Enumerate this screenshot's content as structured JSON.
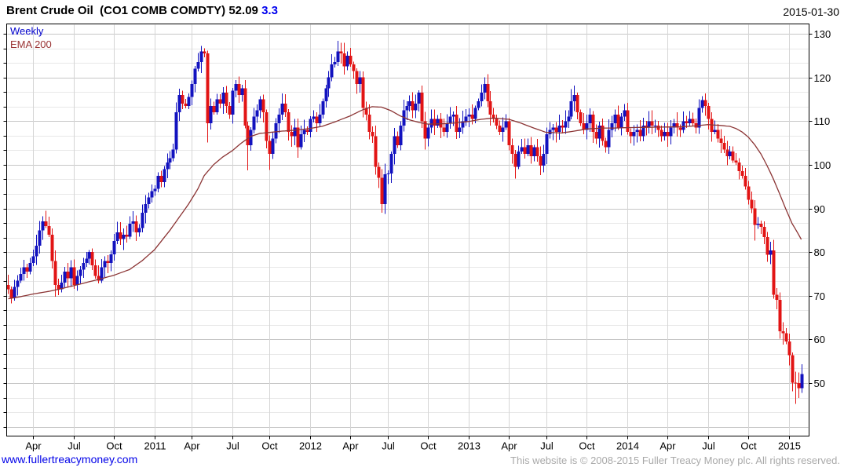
{
  "header": {
    "title": "Brent Crude Oil  (CO1 COMB COMDTY)",
    "price": "52.09",
    "change": "3.3",
    "date": "2015-01-30"
  },
  "legend": {
    "frequency": "Weekly",
    "overlay": "EMA 200"
  },
  "footer": {
    "website": "www.fullertreacymoney.com",
    "copyright": "This website is © 2008-2015 Fuller Treacy Money plc. All rights reserved."
  },
  "colors": {
    "up": "#1212bf",
    "down": "#e21414",
    "ema": "#8b3434",
    "grid_major": "#c6c6c6",
    "grid_minor": "#e8e8e8",
    "grid_vertical": "#d5d5d5",
    "axis": "#000000",
    "link": "#0000e8",
    "change": "#0000ee",
    "frequency_label": "#0000cc",
    "overlay_label": "#993333",
    "copyright": "#a9a9a9"
  },
  "chart_data": {
    "type": "candlestick",
    "instrument": "Brent Crude Oil",
    "ticker": "CO1 COMB COMDTY",
    "frequency": "Weekly",
    "overlay": "EMA 200",
    "last_price": 52.09,
    "change": 3.3,
    "as_of": "2015-01-30",
    "y_axis": {
      "ticks": [
        130,
        120,
        110,
        100,
        90,
        80,
        70,
        60,
        50
      ],
      "top_price": 132.3,
      "bottom_price": 38.0,
      "label_side": "right"
    },
    "x_axis": {
      "ticks": [
        {
          "label": "Apr",
          "idx": 8
        },
        {
          "label": "Jul",
          "idx": 21
        },
        {
          "label": "Oct",
          "idx": 34
        },
        {
          "label": "2011",
          "idx": 47
        },
        {
          "label": "Apr",
          "idx": 59
        },
        {
          "label": "Jul",
          "idx": 72
        },
        {
          "label": "Oct",
          "idx": 84
        },
        {
          "label": "2012",
          "idx": 97
        },
        {
          "label": "Apr",
          "idx": 110
        },
        {
          "label": "Jul",
          "idx": 122
        },
        {
          "label": "Oct",
          "idx": 135
        },
        {
          "label": "2013",
          "idx": 148
        },
        {
          "label": "Apr",
          "idx": 161
        },
        {
          "label": "Jul",
          "idx": 173
        },
        {
          "label": "Oct",
          "idx": 186
        },
        {
          "label": "2014",
          "idx": 199
        },
        {
          "label": "Apr",
          "idx": 212
        },
        {
          "label": "Jul",
          "idx": 225
        },
        {
          "label": "Oct",
          "idx": 238
        },
        {
          "label": "2015",
          "idx": 251
        }
      ]
    },
    "start_week": "2010-02-05",
    "first_open": 72.5,
    "weekly_closes": [
      71.5,
      69.5,
      72.0,
      73.5,
      75.0,
      76.5,
      75.5,
      77.5,
      79.0,
      81.5,
      85.0,
      87.0,
      86.0,
      84.0,
      78.0,
      72.5,
      71.5,
      73.0,
      75.5,
      74.0,
      76.5,
      72.5,
      74.5,
      76.0,
      77.5,
      78.5,
      80.0,
      77.0,
      74.5,
      73.5,
      76.5,
      78.0,
      77.5,
      79.5,
      82.5,
      84.5,
      83.0,
      84.0,
      83.5,
      86.5,
      87.0,
      84.5,
      85.5,
      89.0,
      91.0,
      92.5,
      94.0,
      94.5,
      97.5,
      96.0,
      99.0,
      100.5,
      101.5,
      103.5,
      112.0,
      116.0,
      114.0,
      113.5,
      115.5,
      118.5,
      122.0,
      123.5,
      126.0,
      125.5,
      109.5,
      113.5,
      112.0,
      115.0,
      114.0,
      116.5,
      113.5,
      111.5,
      117.0,
      118.5,
      116.0,
      117.5,
      109.0,
      104.5,
      108.0,
      111.0,
      112.5,
      115.0,
      112.0,
      105.5,
      102.5,
      106.0,
      109.5,
      111.5,
      114.0,
      112.0,
      107.5,
      106.5,
      108.5,
      104.0,
      107.0,
      108.0,
      107.5,
      110.5,
      111.0,
      109.5,
      111.5,
      114.5,
      117.5,
      120.0,
      123.0,
      123.5,
      126.0,
      125.5,
      122.5,
      125.0,
      123.0,
      121.5,
      118.5,
      120.0,
      113.0,
      111.5,
      107.5,
      106.5,
      99.5,
      97.0,
      91.0,
      97.8,
      98.0,
      102.5,
      106.5,
      104.5,
      109.0,
      112.5,
      113.5,
      114.5,
      112.5,
      114.0,
      116.5,
      110.0,
      106.0,
      108.5,
      110.5,
      109.0,
      110.5,
      108.5,
      107.5,
      109.5,
      111.0,
      111.5,
      107.5,
      108.5,
      110.0,
      111.0,
      111.5,
      110.5,
      113.0,
      114.5,
      116.5,
      118.5,
      114.5,
      111.5,
      110.5,
      109.0,
      107.5,
      108.5,
      110.0,
      104.5,
      102.5,
      99.5,
      103.0,
      104.0,
      102.5,
      104.5,
      102.0,
      104.0,
      102.0,
      99.8,
      102.5,
      107.0,
      108.0,
      108.5,
      107.5,
      109.0,
      108.5,
      110.0,
      111.0,
      114.5,
      116.0,
      112.0,
      109.5,
      108.0,
      109.5,
      111.5,
      107.5,
      106.0,
      109.0,
      105.5,
      104.0,
      108.0,
      109.5,
      111.5,
      108.5,
      111.0,
      112.5,
      107.5,
      106.5,
      107.5,
      108.0,
      106.5,
      109.0,
      108.5,
      110.0,
      109.0,
      109.0,
      108.0,
      106.5,
      107.5,
      106.5,
      108.5,
      109.5,
      108.5,
      108.0,
      110.0,
      109.5,
      110.5,
      109.5,
      108.5,
      113.0,
      114.8,
      113.5,
      110.5,
      107.5,
      108.0,
      106.0,
      105.0,
      103.5,
      102.0,
      103.0,
      101.0,
      100.5,
      98.5,
      97.5,
      95.0,
      92.0,
      90.0,
      86.2,
      86.5,
      85.8,
      83.4,
      79.4,
      80.4,
      70.2,
      69.1,
      61.9,
      61.4,
      59.5,
      56.4,
      50.1,
      50.0,
      48.8,
      52.09
    ],
    "wick_overrides": {
      "11": {
        "h": 88.2
      },
      "15": {
        "l": 69.8
      },
      "62": {
        "h": 127.2
      },
      "64": {
        "l": 105.1
      },
      "77": {
        "l": 98.7
      },
      "84": {
        "l": 98.8
      },
      "106": {
        "h": 128.4
      },
      "120": {
        "l": 89.0
      },
      "134": {
        "l": 103.5
      },
      "163": {
        "l": 96.8
      },
      "171": {
        "l": 97.6
      },
      "181": {
        "h": 117.3
      },
      "192": {
        "l": 102.8
      },
      "223": {
        "h": 115.7
      },
      "240": {
        "l": 82.6
      },
      "249": {
        "l": 58.8
      },
      "253": {
        "l": 45.2
      }
    },
    "ema200_points": [
      [
        0,
        69.3
      ],
      [
        4,
        69.8
      ],
      [
        8,
        70.4
      ],
      [
        13,
        71.0
      ],
      [
        17,
        71.6
      ],
      [
        21,
        72.3
      ],
      [
        26,
        73.2
      ],
      [
        30,
        73.9
      ],
      [
        34,
        74.7
      ],
      [
        39,
        76.0
      ],
      [
        43,
        78.0
      ],
      [
        47,
        80.5
      ],
      [
        52,
        85.0
      ],
      [
        55,
        88.0
      ],
      [
        58,
        91.0
      ],
      [
        61,
        94.5
      ],
      [
        63,
        97.5
      ],
      [
        66,
        100.0
      ],
      [
        69,
        101.8
      ],
      [
        72,
        103.2
      ],
      [
        75,
        105.0
      ],
      [
        78,
        106.5
      ],
      [
        81,
        107.2
      ],
      [
        84,
        107.4
      ],
      [
        88,
        107.7
      ],
      [
        92,
        107.9
      ],
      [
        97,
        108.3
      ],
      [
        101,
        108.8
      ],
      [
        105,
        109.8
      ],
      [
        110,
        111.2
      ],
      [
        114,
        112.6
      ],
      [
        117,
        113.3
      ],
      [
        120,
        113.2
      ],
      [
        123,
        112.4
      ],
      [
        126,
        111.2
      ],
      [
        129,
        110.3
      ],
      [
        132,
        109.7
      ],
      [
        135,
        109.3
      ],
      [
        140,
        109.4
      ],
      [
        144,
        109.6
      ],
      [
        148,
        109.9
      ],
      [
        152,
        110.4
      ],
      [
        156,
        110.7
      ],
      [
        161,
        110.4
      ],
      [
        165,
        109.5
      ],
      [
        169,
        108.4
      ],
      [
        173,
        107.4
      ],
      [
        178,
        107.3
      ],
      [
        182,
        107.7
      ],
      [
        186,
        108.2
      ],
      [
        191,
        108.4
      ],
      [
        195,
        108.4
      ],
      [
        199,
        108.5
      ],
      [
        208,
        108.6
      ],
      [
        216,
        108.7
      ],
      [
        221,
        108.9
      ],
      [
        225,
        109.2
      ],
      [
        229,
        109.0
      ],
      [
        232,
        108.8
      ],
      [
        234,
        108.3
      ],
      [
        236,
        107.5
      ],
      [
        238,
        106.3
      ],
      [
        240,
        104.6
      ],
      [
        242,
        102.5
      ],
      [
        244,
        99.8
      ],
      [
        246,
        96.8
      ],
      [
        248,
        93.4
      ],
      [
        250,
        89.9
      ],
      [
        252,
        86.6
      ],
      [
        254,
        84.2
      ],
      [
        255,
        82.9
      ]
    ]
  }
}
